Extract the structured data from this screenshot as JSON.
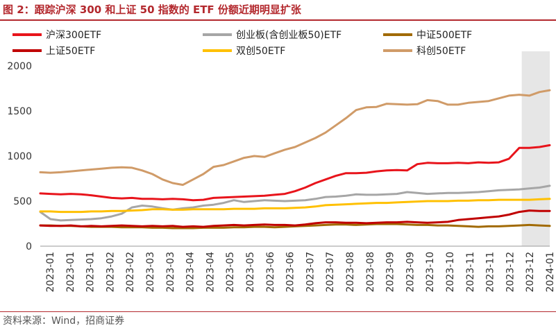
{
  "figure_title": "图 2：跟踪沪深 300 和上证 50 指数的 ETF 份额近期明显扩张",
  "source": "资料来源：Wind，招商证券",
  "colors": {
    "brand": "#b3282d",
    "shade": "#e6e6e6"
  },
  "chart_data": {
    "type": "line",
    "title": "",
    "xlabel": "",
    "ylabel": "",
    "ylim": [
      0,
      2000
    ],
    "yticks": [
      "0",
      "500",
      "1000",
      "1500",
      "2000"
    ],
    "x_tick_labels": [
      "2023-01",
      "2023-01",
      "2023-01",
      "2023-02",
      "2023-02",
      "2023-03",
      "2023-03",
      "2023-04",
      "2023-04",
      "2023-05",
      "2023-05",
      "2023-06",
      "2023-06",
      "2023-07",
      "2023-07",
      "2023-08",
      "2023-08",
      "2023-09",
      "2023-09",
      "2023-10",
      "2023-10",
      "2023-11",
      "2023-11",
      "2023-12",
      "2023-12",
      "2024-01"
    ],
    "shaded_region_x": [
      0.945,
      1.0
    ],
    "grid": false,
    "legend_position": "top",
    "series": [
      {
        "name": "沪深300ETF",
        "color": "#e8141b",
        "width": 3,
        "x": [
          0,
          0.02,
          0.04,
          0.06,
          0.08,
          0.1,
          0.12,
          0.14,
          0.16,
          0.18,
          0.2,
          0.22,
          0.24,
          0.26,
          0.28,
          0.3,
          0.32,
          0.34,
          0.36,
          0.38,
          0.4,
          0.42,
          0.44,
          0.46,
          0.48,
          0.5,
          0.52,
          0.54,
          0.56,
          0.58,
          0.6,
          0.62,
          0.64,
          0.66,
          0.68,
          0.7,
          0.72,
          0.74,
          0.76,
          0.78,
          0.8,
          0.82,
          0.84,
          0.86,
          0.88,
          0.9,
          0.92,
          0.94,
          0.96,
          0.98,
          1.0
        ],
        "y": [
          585,
          580,
          575,
          580,
          575,
          565,
          550,
          535,
          530,
          535,
          525,
          525,
          520,
          525,
          520,
          510,
          515,
          535,
          540,
          545,
          550,
          555,
          560,
          570,
          580,
          610,
          650,
          700,
          740,
          780,
          810,
          810,
          815,
          830,
          840,
          845,
          840,
          910,
          925,
          920,
          920,
          925,
          920,
          930,
          925,
          930,
          970,
          1090,
          1090,
          1100,
          1120
        ]
      },
      {
        "name": "创业板(含创业板50)ETF",
        "color": "#a6a6a6",
        "width": 3,
        "x": [
          0,
          0.02,
          0.04,
          0.06,
          0.08,
          0.1,
          0.12,
          0.14,
          0.16,
          0.18,
          0.2,
          0.22,
          0.24,
          0.26,
          0.28,
          0.3,
          0.32,
          0.34,
          0.36,
          0.38,
          0.4,
          0.42,
          0.44,
          0.46,
          0.48,
          0.5,
          0.52,
          0.54,
          0.56,
          0.58,
          0.6,
          0.62,
          0.64,
          0.66,
          0.68,
          0.7,
          0.72,
          0.74,
          0.76,
          0.78,
          0.8,
          0.82,
          0.84,
          0.86,
          0.88,
          0.9,
          0.92,
          0.94,
          0.96,
          0.98,
          1.0
        ],
        "y": [
          380,
          300,
          285,
          290,
          295,
          300,
          310,
          330,
          360,
          430,
          450,
          440,
          420,
          405,
          420,
          430,
          450,
          460,
          480,
          510,
          490,
          500,
          510,
          505,
          500,
          505,
          510,
          525,
          545,
          550,
          560,
          575,
          570,
          570,
          575,
          580,
          600,
          590,
          580,
          585,
          590,
          590,
          595,
          600,
          610,
          620,
          625,
          630,
          640,
          650,
          670
        ]
      },
      {
        "name": "中证500ETF",
        "color": "#a16a04",
        "width": 3,
        "x": [
          0,
          0.02,
          0.04,
          0.06,
          0.08,
          0.1,
          0.12,
          0.14,
          0.16,
          0.18,
          0.2,
          0.22,
          0.24,
          0.26,
          0.28,
          0.3,
          0.32,
          0.34,
          0.36,
          0.38,
          0.4,
          0.42,
          0.44,
          0.46,
          0.48,
          0.5,
          0.52,
          0.54,
          0.56,
          0.58,
          0.6,
          0.62,
          0.64,
          0.66,
          0.68,
          0.7,
          0.72,
          0.74,
          0.76,
          0.78,
          0.8,
          0.82,
          0.84,
          0.86,
          0.88,
          0.9,
          0.92,
          0.94,
          0.96,
          0.98,
          1.0
        ],
        "y": [
          230,
          230,
          225,
          225,
          220,
          215,
          215,
          215,
          210,
          210,
          210,
          205,
          205,
          200,
          200,
          200,
          205,
          205,
          205,
          210,
          210,
          215,
          215,
          210,
          215,
          220,
          225,
          230,
          235,
          240,
          240,
          235,
          240,
          245,
          245,
          245,
          240,
          235,
          235,
          230,
          230,
          225,
          220,
          215,
          220,
          220,
          225,
          230,
          235,
          230,
          225
        ]
      },
      {
        "name": "上证50ETF",
        "color": "#c00000",
        "width": 3,
        "x": [
          0,
          0.02,
          0.04,
          0.06,
          0.08,
          0.1,
          0.12,
          0.14,
          0.16,
          0.18,
          0.2,
          0.22,
          0.24,
          0.26,
          0.28,
          0.3,
          0.32,
          0.34,
          0.36,
          0.38,
          0.4,
          0.42,
          0.44,
          0.46,
          0.48,
          0.5,
          0.52,
          0.54,
          0.56,
          0.58,
          0.6,
          0.62,
          0.64,
          0.66,
          0.68,
          0.7,
          0.72,
          0.74,
          0.76,
          0.78,
          0.8,
          0.82,
          0.84,
          0.86,
          0.88,
          0.9,
          0.92,
          0.94,
          0.96,
          0.98,
          1.0
        ],
        "y": [
          230,
          225,
          225,
          230,
          220,
          225,
          220,
          225,
          230,
          225,
          220,
          225,
          220,
          225,
          215,
          220,
          215,
          225,
          230,
          235,
          230,
          235,
          240,
          235,
          235,
          230,
          240,
          255,
          265,
          265,
          260,
          260,
          255,
          260,
          265,
          265,
          270,
          265,
          260,
          265,
          270,
          290,
          300,
          310,
          320,
          330,
          350,
          380,
          395,
          390,
          390
        ]
      },
      {
        "name": "双创50ETF",
        "color": "#ffc000",
        "width": 3,
        "x": [
          0,
          0.02,
          0.04,
          0.06,
          0.08,
          0.1,
          0.12,
          0.14,
          0.16,
          0.18,
          0.2,
          0.22,
          0.24,
          0.26,
          0.28,
          0.3,
          0.32,
          0.34,
          0.36,
          0.38,
          0.4,
          0.42,
          0.44,
          0.46,
          0.48,
          0.5,
          0.52,
          0.54,
          0.56,
          0.58,
          0.6,
          0.62,
          0.64,
          0.66,
          0.68,
          0.7,
          0.72,
          0.74,
          0.76,
          0.78,
          0.8,
          0.82,
          0.84,
          0.86,
          0.88,
          0.9,
          0.92,
          0.94,
          0.96,
          0.98,
          1.0
        ],
        "y": [
          385,
          385,
          380,
          380,
          380,
          385,
          385,
          390,
          390,
          395,
          400,
          410,
          410,
          405,
          405,
          410,
          410,
          410,
          410,
          415,
          415,
          415,
          420,
          420,
          420,
          425,
          430,
          440,
          455,
          460,
          465,
          470,
          475,
          480,
          480,
          485,
          490,
          495,
          500,
          500,
          500,
          505,
          505,
          510,
          510,
          515,
          515,
          515,
          515,
          520,
          525
        ]
      },
      {
        "name": "科创50ETF",
        "color": "#d09b68",
        "width": 3,
        "x": [
          0,
          0.02,
          0.04,
          0.06,
          0.08,
          0.1,
          0.12,
          0.14,
          0.16,
          0.18,
          0.2,
          0.22,
          0.24,
          0.26,
          0.28,
          0.3,
          0.32,
          0.34,
          0.36,
          0.38,
          0.4,
          0.42,
          0.44,
          0.46,
          0.48,
          0.5,
          0.52,
          0.54,
          0.56,
          0.58,
          0.6,
          0.62,
          0.64,
          0.66,
          0.68,
          0.7,
          0.72,
          0.74,
          0.76,
          0.78,
          0.8,
          0.82,
          0.84,
          0.86,
          0.88,
          0.9,
          0.92,
          0.94,
          0.96,
          0.98,
          1.0
        ],
        "y": [
          820,
          815,
          820,
          830,
          840,
          850,
          860,
          870,
          875,
          870,
          840,
          800,
          740,
          700,
          680,
          740,
          800,
          880,
          900,
          940,
          980,
          1000,
          990,
          1030,
          1070,
          1100,
          1150,
          1200,
          1260,
          1340,
          1420,
          1510,
          1540,
          1545,
          1580,
          1575,
          1570,
          1575,
          1620,
          1610,
          1570,
          1570,
          1590,
          1600,
          1610,
          1640,
          1670,
          1680,
          1670,
          1710,
          1730
        ]
      }
    ]
  }
}
